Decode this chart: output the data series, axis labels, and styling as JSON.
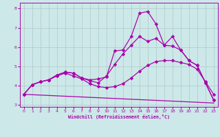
{
  "xlabel": "Windchill (Refroidissement éolien,°C)",
  "xlim": [
    -0.5,
    23.5
  ],
  "ylim": [
    2.9,
    8.3
  ],
  "xticks": [
    0,
    1,
    2,
    3,
    4,
    5,
    6,
    7,
    8,
    9,
    10,
    11,
    12,
    13,
    14,
    15,
    16,
    17,
    18,
    19,
    20,
    21,
    22,
    23
  ],
  "yticks": [
    3,
    4,
    5,
    6,
    7,
    8
  ],
  "bg_color": "#cce8e8",
  "line_color": "#aa00aa",
  "grid_color": "#b0c8c8",
  "lines": [
    {
      "x": [
        0,
        1,
        2,
        3,
        4,
        5,
        6,
        7,
        8,
        9,
        10,
        11,
        12,
        13,
        14,
        15,
        16,
        17,
        18,
        19,
        20,
        21,
        22,
        23
      ],
      "y": [
        3.55,
        4.05,
        4.2,
        4.3,
        4.55,
        4.7,
        4.65,
        4.4,
        4.3,
        4.35,
        4.45,
        5.8,
        5.85,
        6.55,
        7.75,
        7.85,
        7.2,
        6.1,
        6.05,
        5.85,
        5.3,
        5.05,
        4.15,
        3.25
      ],
      "marker": "D",
      "ms": 2.5,
      "lw": 0.9
    },
    {
      "x": [
        0,
        1,
        2,
        3,
        4,
        5,
        6,
        7,
        8,
        9,
        10,
        11,
        12,
        13,
        14,
        15,
        16,
        17,
        18,
        19,
        20,
        21,
        22,
        23
      ],
      "y": [
        3.55,
        4.05,
        4.2,
        4.3,
        4.55,
        4.7,
        4.65,
        4.4,
        4.25,
        4.15,
        4.5,
        5.1,
        5.65,
        6.1,
        6.55,
        6.3,
        6.45,
        6.1,
        6.55,
        5.85,
        5.3,
        5.05,
        4.15,
        3.25
      ],
      "marker": "D",
      "ms": 2.5,
      "lw": 0.9
    },
    {
      "x": [
        0,
        1,
        2,
        3,
        4,
        5,
        6,
        7,
        8,
        9,
        10,
        11,
        12,
        13,
        14,
        15,
        16,
        17,
        18,
        19,
        20,
        21,
        22,
        23
      ],
      "y": [
        3.55,
        4.05,
        4.2,
        4.3,
        4.5,
        4.65,
        4.5,
        4.35,
        4.1,
        3.95,
        3.9,
        3.95,
        4.1,
        4.4,
        4.75,
        5.05,
        5.25,
        5.3,
        5.3,
        5.2,
        5.1,
        4.85,
        4.2,
        3.55
      ],
      "marker": "D",
      "ms": 2.5,
      "lw": 0.9
    },
    {
      "x": [
        0,
        23
      ],
      "y": [
        3.55,
        3.1
      ],
      "marker": null,
      "ms": 0,
      "lw": 0.9
    }
  ]
}
